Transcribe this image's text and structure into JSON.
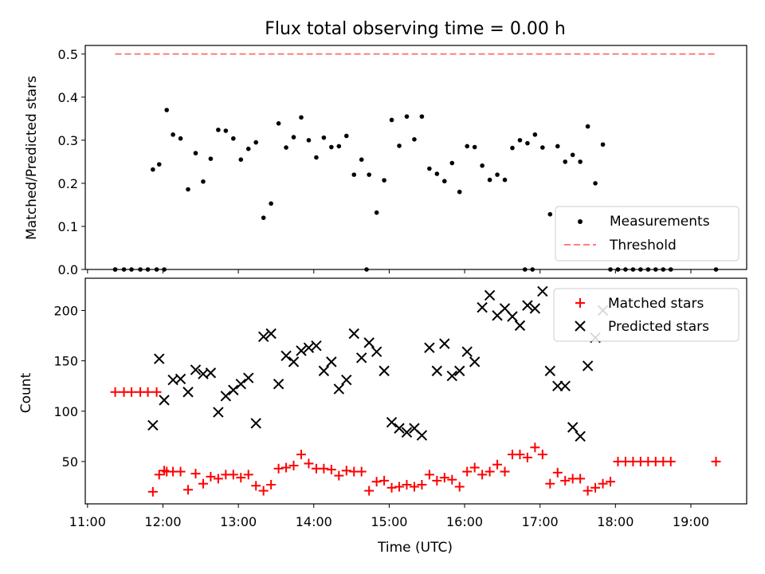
{
  "chart_data": [
    {
      "type": "scatter",
      "title": "Flux total observing time = 0.00 h",
      "xlabel": "",
      "ylabel": "Matched/Predicted stars",
      "ylim": [
        0,
        0.52
      ],
      "xlim_hours": [
        10.97,
        19.74
      ],
      "yticks": [
        "0.0",
        "0.1",
        "0.2",
        "0.3",
        "0.4",
        "0.5"
      ],
      "grid": false,
      "legend_position": "lower-right",
      "series": [
        {
          "name": "Measurements",
          "marker": "dot",
          "color": "#000000",
          "x": [
            "11:22",
            "11:29",
            "11:35",
            "11:42",
            "11:48",
            "11:55",
            "12:01",
            "11:52",
            "11:57",
            "12:03",
            "12:08",
            "12:14",
            "12:20",
            "12:26",
            "12:32",
            "12:38",
            "12:44",
            "12:50",
            "12:56",
            "13:02",
            "13:08",
            "13:14",
            "13:20",
            "13:26",
            "13:32",
            "13:38",
            "13:44",
            "13:50",
            "13:56",
            "14:02",
            "14:08",
            "14:14",
            "14:20",
            "14:26",
            "14:32",
            "14:38",
            "14:44",
            "14:50",
            "14:56",
            "15:02",
            "15:08",
            "15:14",
            "15:20",
            "15:26",
            "15:32",
            "15:38",
            "15:44",
            "15:50",
            "15:56",
            "16:02",
            "16:08",
            "16:14",
            "16:20",
            "16:26",
            "16:32",
            "16:38",
            "16:44",
            "16:50",
            "16:56",
            "17:02",
            "17:08",
            "17:14",
            "17:20",
            "17:26",
            "17:32",
            "17:38",
            "17:44",
            "17:50",
            "17:56",
            "18:02",
            "18:08",
            "18:14",
            "18:20",
            "18:26",
            "18:32",
            "18:38",
            "18:44",
            "19:20",
            "14:42",
            "16:48",
            "16:54",
            "11:22"
          ],
          "y": [
            0,
            0,
            0,
            0,
            0,
            0,
            0,
            0.232,
            0.244,
            0.37,
            0.313,
            0.304,
            0.186,
            0.27,
            0.204,
            0.257,
            0.324,
            0.322,
            0.304,
            0.255,
            0.28,
            0.295,
            0.12,
            0.153,
            0.339,
            0.283,
            0.307,
            0.353,
            0.3,
            0.26,
            0.306,
            0.284,
            0.286,
            0.31,
            0.22,
            0.255,
            0.22,
            0.132,
            0.207,
            0.347,
            0.287,
            0.355,
            0.302,
            0.355,
            0.234,
            0.222,
            0.205,
            0.247,
            0.18,
            0.286,
            0.284,
            0.241,
            0.208,
            0.22,
            0.208,
            0.282,
            0.3,
            0.293,
            0.313,
            0.283,
            0.128,
            0.286,
            0.25,
            0.266,
            0.25,
            0.332,
            0.2,
            0.29,
            0,
            0,
            0,
            0,
            0,
            0,
            0,
            0,
            0,
            0,
            0,
            0,
            0,
            0
          ]
        },
        {
          "name": "Threshold",
          "style": "dashed",
          "color": "#ff7f7f",
          "x": [
            "11:22",
            "19:20"
          ],
          "y": [
            0.5,
            0.5
          ]
        }
      ]
    },
    {
      "type": "scatter",
      "title": "",
      "xlabel": "Time (UTC)",
      "ylabel": "Count",
      "ylim": [
        8,
        232
      ],
      "xlim_hours": [
        10.97,
        19.74
      ],
      "yticks": [
        "50",
        "100",
        "150",
        "200"
      ],
      "xticks": [
        "11:00",
        "12:00",
        "13:00",
        "14:00",
        "15:00",
        "16:00",
        "17:00",
        "18:00",
        "19:00"
      ],
      "grid": false,
      "legend_position": "upper-right",
      "series": [
        {
          "name": "Matched stars",
          "marker": "plus",
          "color": "#ff0000",
          "x": [
            "11:22",
            "11:29",
            "11:35",
            "11:42",
            "11:48",
            "11:55",
            "11:52",
            "11:57",
            "12:01",
            "12:03",
            "12:08",
            "12:14",
            "12:20",
            "12:26",
            "12:32",
            "12:38",
            "12:44",
            "12:50",
            "12:56",
            "13:02",
            "13:08",
            "13:14",
            "13:20",
            "13:26",
            "13:32",
            "13:38",
            "13:44",
            "13:50",
            "13:56",
            "14:02",
            "14:08",
            "14:14",
            "14:20",
            "14:26",
            "14:32",
            "14:38",
            "14:44",
            "14:50",
            "14:56",
            "15:02",
            "15:08",
            "15:14",
            "15:20",
            "15:26",
            "15:32",
            "15:38",
            "15:44",
            "15:50",
            "15:56",
            "16:02",
            "16:08",
            "16:14",
            "16:20",
            "16:26",
            "16:32",
            "16:38",
            "16:44",
            "16:50",
            "16:56",
            "17:02",
            "17:08",
            "17:14",
            "17:20",
            "17:26",
            "17:32",
            "17:38",
            "17:44",
            "17:50",
            "17:56",
            "18:02",
            "18:08",
            "18:14",
            "18:20",
            "18:26",
            "18:32",
            "18:38",
            "18:44",
            "19:20"
          ],
          "y": [
            119,
            119,
            119,
            119,
            119,
            119,
            20,
            37,
            41,
            40,
            40,
            40,
            22,
            38,
            28,
            35,
            33,
            37,
            37,
            34,
            37,
            26,
            21,
            27,
            43,
            44,
            46,
            57,
            48,
            43,
            43,
            42,
            36,
            41,
            40,
            40,
            21,
            30,
            31,
            24,
            25,
            27,
            25,
            27,
            37,
            31,
            34,
            32,
            25,
            40,
            44,
            37,
            40,
            47,
            40,
            57,
            57,
            54,
            64,
            57,
            28,
            39,
            31,
            33,
            33,
            21,
            24,
            28,
            30,
            50,
            50,
            50,
            50,
            50,
            50,
            50,
            50,
            50
          ]
        },
        {
          "name": "Predicted stars",
          "marker": "x",
          "color": "#000000",
          "x": [
            "11:52",
            "11:57",
            "12:01",
            "12:08",
            "12:14",
            "12:20",
            "12:26",
            "12:32",
            "12:38",
            "12:44",
            "12:50",
            "12:56",
            "13:02",
            "13:08",
            "13:14",
            "13:20",
            "13:26",
            "13:32",
            "13:38",
            "13:44",
            "13:50",
            "13:56",
            "14:02",
            "14:08",
            "14:14",
            "14:20",
            "14:26",
            "14:32",
            "14:38",
            "14:44",
            "14:50",
            "14:56",
            "15:02",
            "15:08",
            "15:14",
            "15:20",
            "15:26",
            "15:32",
            "15:38",
            "15:44",
            "15:50",
            "15:56",
            "16:02",
            "16:08",
            "16:14",
            "16:20",
            "16:26",
            "16:32",
            "16:38",
            "16:44",
            "16:50",
            "16:56",
            "17:02",
            "17:08",
            "17:14",
            "17:20",
            "17:26",
            "17:32",
            "17:38",
            "17:44",
            "17:50"
          ],
          "y": [
            86,
            152,
            111,
            131,
            132,
            119,
            141,
            137,
            138,
            99,
            115,
            121,
            127,
            133,
            88,
            174,
            177,
            127,
            155,
            149,
            160,
            163,
            165,
            140,
            149,
            122,
            131,
            177,
            153,
            168,
            159,
            140,
            89,
            83,
            79,
            83,
            76,
            163,
            140,
            167,
            135,
            140,
            159,
            149,
            203,
            215,
            195,
            202,
            194,
            185,
            205,
            202,
            219,
            140,
            125,
            125,
            84,
            75,
            145,
            173,
            200
          ]
        }
      ]
    }
  ]
}
